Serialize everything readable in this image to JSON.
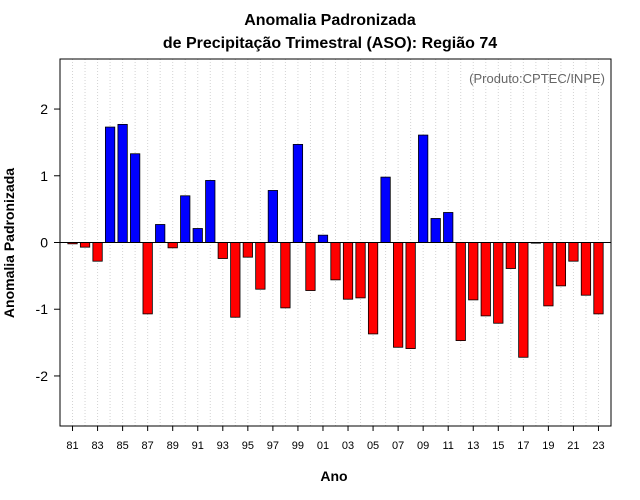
{
  "colors": {
    "positive": "#0000ff",
    "negative": "#ff0000",
    "grid": "#d3d3d3",
    "note": "#666666"
  },
  "chart_data": {
    "type": "bar",
    "title": "Anomalia Padronizada",
    "subtitle": "de Precipitação Trimestral (ASO): Região 74",
    "xlabel": "Ano",
    "ylabel": "Anomalia Padronizada",
    "annotation": "(Produto:CPTEC/INPE)",
    "ylim": [
      -2.75,
      2.75
    ],
    "yticks": [
      -2,
      -1,
      0,
      1,
      2
    ],
    "ytick_labels": [
      "-2",
      "-1",
      "0",
      "1",
      "2"
    ],
    "grid": true,
    "categories": [
      "81",
      "82",
      "83",
      "84",
      "85",
      "86",
      "87",
      "88",
      "89",
      "90",
      "91",
      "92",
      "93",
      "94",
      "95",
      "96",
      "97",
      "98",
      "99",
      "00",
      "01",
      "02",
      "03",
      "04",
      "05",
      "06",
      "07",
      "08",
      "09",
      "10",
      "11",
      "12",
      "13",
      "14",
      "15",
      "16",
      "17",
      "18",
      "19",
      "20",
      "21",
      "22",
      "23"
    ],
    "xtick_labels": [
      "81",
      "83",
      "85",
      "87",
      "89",
      "91",
      "93",
      "95",
      "97",
      "99",
      "01",
      "03",
      "05",
      "07",
      "09",
      "11",
      "13",
      "15",
      "17",
      "19",
      "21",
      "23"
    ],
    "values": [
      -0.02,
      -0.07,
      -0.28,
      1.73,
      1.77,
      1.33,
      -1.07,
      0.27,
      -0.08,
      0.7,
      0.21,
      0.93,
      -0.24,
      -1.12,
      -0.22,
      -0.7,
      0.78,
      -0.98,
      1.47,
      -0.72,
      0.11,
      -0.56,
      -0.85,
      -0.83,
      -1.37,
      0.98,
      -1.57,
      -1.59,
      1.61,
      0.36,
      0.45,
      -1.47,
      -0.86,
      -1.1,
      -1.21,
      -0.39,
      -1.72,
      -0.01,
      -0.95,
      -0.65,
      -0.28,
      -0.79,
      -1.07
    ]
  }
}
